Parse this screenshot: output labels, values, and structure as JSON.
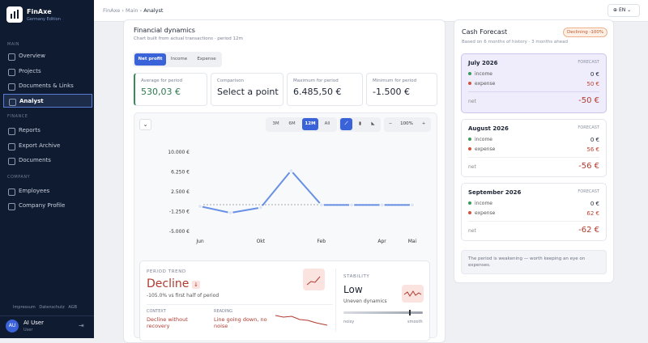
{
  "sidebar": {
    "brand": "FinAxe",
    "edition": "Germany Edition",
    "sections": [
      {
        "title": "MAIN",
        "items": [
          "Overview",
          "Projects",
          "Documents & Links",
          "Analyst"
        ]
      },
      {
        "title": "FINANCE",
        "items": [
          "Reports",
          "Export Archive",
          "Documents"
        ]
      },
      {
        "title": "COMPANY",
        "items": [
          "Employees",
          "Company Profile"
        ]
      }
    ],
    "footer_links": [
      "Impressum",
      "Datenschutz",
      "AGB"
    ],
    "user": {
      "initials": "AU",
      "name": "AI User",
      "role": "User"
    }
  },
  "header": {
    "breadcrumb": [
      "FinAxe",
      "Main",
      "Analyst"
    ],
    "language": "EN"
  },
  "dynamics": {
    "title": "Financial dynamics",
    "subtitle": "Chart built from actual transactions · period 12m",
    "tabs": [
      "Net profit",
      "Income",
      "Expense"
    ],
    "stats": [
      {
        "label": "Average for period",
        "value": "530,03 €"
      },
      {
        "label": "Comparison",
        "value": "Select a point"
      },
      {
        "label": "Maximum for period",
        "value": "6.485,50 €"
      },
      {
        "label": "Minimum for period",
        "value": "-1.500 €"
      }
    ],
    "periods": [
      "3M",
      "6M",
      "12M",
      "All"
    ],
    "zoom": "100%"
  },
  "chart_data": {
    "type": "line",
    "categories": [
      "Jun",
      null,
      "Okt",
      null,
      "Feb",
      null,
      "Apr",
      "Mai"
    ],
    "values": [
      -250,
      -1500,
      -500,
      6485.5,
      0,
      0,
      0,
      0
    ],
    "color": "#4f7ee0",
    "ylim": [
      -5000,
      10000
    ],
    "yticks": [
      {
        "value": 10000,
        "label": "10.000 €"
      },
      {
        "value": 6250,
        "label": "6.250 €"
      },
      {
        "value": 2500,
        "label": "2.500 €"
      },
      {
        "value": -1250,
        "label": "-1.250 €"
      },
      {
        "value": -5000,
        "label": "-5.000 €"
      }
    ]
  },
  "trend": {
    "label": "PERIOD TREND",
    "value": "Decline",
    "change": "-105.0% vs first half of period",
    "context_label": "CONTEXT",
    "context": "Decline without recovery",
    "reading_label": "READING",
    "reading": "Line going down, no noise",
    "stability_label": "STABILITY",
    "stability": "Low",
    "stability_text": "Uneven dynamics",
    "scale_left": "noisy",
    "scale_right": "smooth"
  },
  "forecast": {
    "title": "Cash Forecast",
    "badge": "Declining -100%",
    "subtitle": "Based on 6 months of history · 3 months ahead",
    "months": [
      {
        "month": "July 2026",
        "tag": "FORECAST",
        "income_label": "income",
        "income": "0 €",
        "expense_label": "expense",
        "expense": "50 €",
        "net_label": "net",
        "net": "-50 €"
      },
      {
        "month": "August 2026",
        "tag": "FORECAST",
        "income_label": "income",
        "income": "0 €",
        "expense_label": "expense",
        "expense": "56 €",
        "net_label": "net",
        "net": "-56 €"
      },
      {
        "month": "September 2026",
        "tag": "FORECAST",
        "income_label": "income",
        "income": "0 €",
        "expense_label": "expense",
        "expense": "62 €",
        "net_label": "net",
        "net": "-62 €"
      }
    ],
    "note": "The period is weakening — worth keeping an eye on expenses."
  }
}
